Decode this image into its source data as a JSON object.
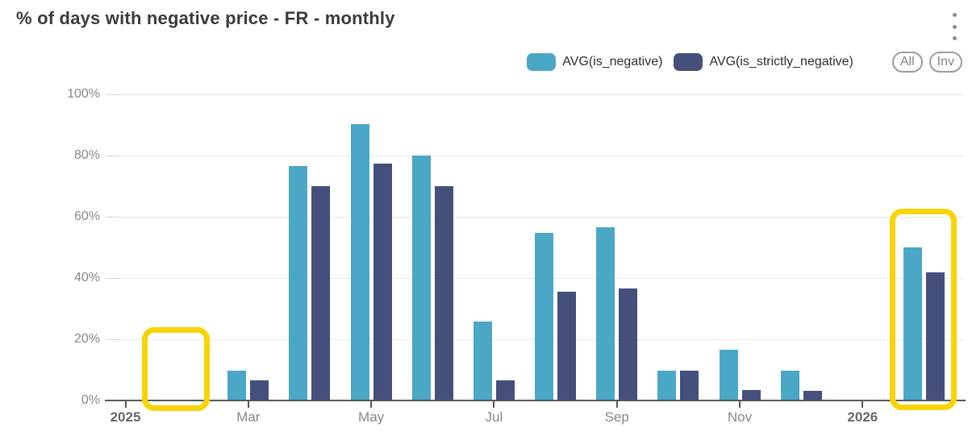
{
  "header": {
    "title": "% of days with negative price - FR - monthly"
  },
  "legend": {
    "buttons": [
      {
        "label": "All"
      },
      {
        "label": "Inv"
      }
    ]
  },
  "chart_data": {
    "type": "bar",
    "title": "% of days with negative price - FR - monthly",
    "region": "FR",
    "granularity": "monthly",
    "months": [
      "2025-01",
      "2025-02",
      "2025-03",
      "2025-04",
      "2025-05",
      "2025-06",
      "2025-07",
      "2025-08",
      "2025-09",
      "2025-10",
      "2025-11",
      "2025-12",
      "2026-01",
      "2026-02"
    ],
    "series": [
      {
        "name": "AVG(is_negative)",
        "color": "#4ba7c6",
        "values": [
          null,
          null,
          9.7,
          76.7,
          90.3,
          80,
          25.8,
          54.8,
          56.7,
          9.7,
          16.7,
          9.7,
          null,
          50
        ]
      },
      {
        "name": "AVG(is_strictly_negative)",
        "color": "#454f7c",
        "values": [
          null,
          null,
          6.5,
          70,
          77.4,
          70,
          6.5,
          35.5,
          36.7,
          9.7,
          3.3,
          3.2,
          null,
          41.9
        ]
      }
    ],
    "ylabel": "",
    "xlabel": "",
    "ylim": [
      0,
      100
    ],
    "y_ticks": [
      "0%",
      "20%",
      "40%",
      "60%",
      "80%",
      "100%"
    ],
    "x_ticks": [
      {
        "label": "2025",
        "month_index": 0,
        "emphasized": true
      },
      {
        "label": "Mar",
        "month_index": 2
      },
      {
        "label": "May",
        "month_index": 4
      },
      {
        "label": "Jul",
        "month_index": 6
      },
      {
        "label": "Sep",
        "month_index": 8
      },
      {
        "label": "Nov",
        "month_index": 10
      },
      {
        "label": "2026",
        "month_index": 12,
        "emphasized": true
      }
    ],
    "grid": true,
    "legend_position": "top-right",
    "annotations": [
      {
        "type": "highlight-box",
        "month": "2025-02",
        "color": "#f8d406",
        "note": "empty month slot highlighted"
      },
      {
        "type": "highlight-box",
        "month": "2026-02",
        "color": "#f8d406",
        "note": "bars highlighted"
      }
    ]
  }
}
